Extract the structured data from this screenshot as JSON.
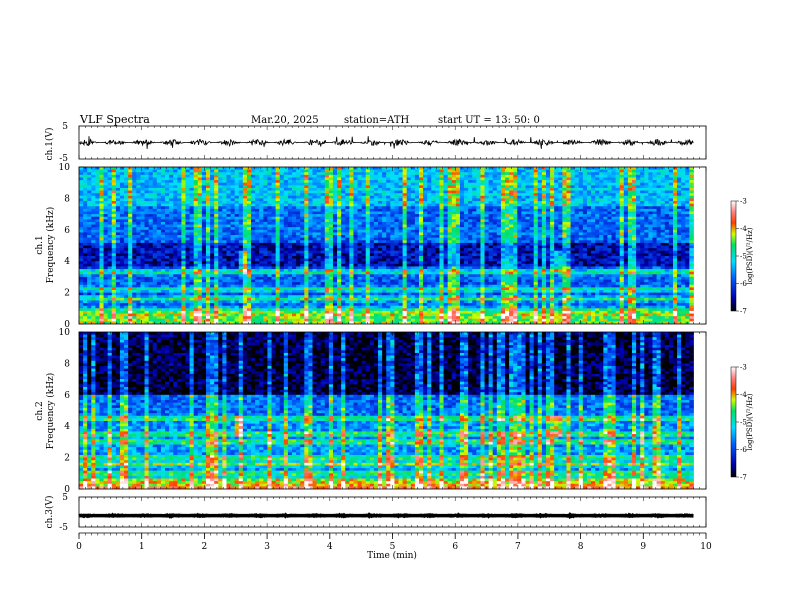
{
  "header": {
    "title": "VLF  Spectra",
    "date": "Mar.20, 2025",
    "station": "station=ATH",
    "start": "start  UT  =   13: 50: 0"
  },
  "chart_data": [
    {
      "type": "line",
      "id": "ch1-waveform",
      "ylabel": "ch.1(V)",
      "ylim": [
        -5,
        5
      ],
      "yticks": [
        "5",
        "-5"
      ],
      "x_range_min": [
        0,
        9.8
      ],
      "y_level": 0,
      "y_noise_amplitude": 1,
      "color": "#000000"
    },
    {
      "type": "heatmap",
      "id": "ch1-spectrogram",
      "ylabel": [
        "ch.1",
        "Frequency  (kHz)"
      ],
      "ylim": [
        0,
        10
      ],
      "yticks": [
        "0",
        "2",
        "4",
        "6",
        "8",
        "10"
      ],
      "x_range_min": [
        0,
        9.8
      ],
      "colorbar": {
        "label": "log(PSD)(V²/Hz)",
        "range": [
          -7,
          -3
        ],
        "ticks": [
          "-3",
          "-4",
          "-5",
          "-6",
          "-7"
        ]
      },
      "features": {
        "bright_bands_kHz": [
          0.0,
          0.3,
          0.6,
          0.9,
          1.6,
          2.2,
          3.3
        ],
        "dark_band_kHz": [
          3.6,
          5.2
        ],
        "bursts_min": [
          2.6,
          7.65
        ]
      }
    },
    {
      "type": "heatmap",
      "id": "ch2-spectrogram",
      "ylabel": [
        "ch.2",
        "Frequency  (kHz)"
      ],
      "ylim": [
        0,
        10
      ],
      "yticks": [
        "0",
        "2",
        "4",
        "6",
        "8",
        "10"
      ],
      "x_range_min": [
        0,
        9.8
      ],
      "colorbar": {
        "label": "log(PSD)(V²/Hz)",
        "range": [
          -7,
          -3
        ],
        "ticks": [
          "-3",
          "-4",
          "-5",
          "-6",
          "-7"
        ]
      },
      "features": {
        "bright_bands_kHz": [
          0.0,
          0.2,
          0.5,
          1.0,
          1.6,
          2.0,
          3.0,
          3.5,
          4.5
        ],
        "dark_band_kHz": [
          6.0,
          10.0
        ],
        "bursts_min": [
          2.55,
          7.65
        ]
      }
    },
    {
      "type": "line",
      "id": "ch3-waveform",
      "ylabel": "ch.3(V)",
      "ylim": [
        -5,
        5
      ],
      "yticks": [
        "5",
        "-5"
      ],
      "x_range_min": [
        0,
        9.8
      ],
      "y_level": -1.2,
      "y_noise_amplitude": 0.15,
      "color": "#000000"
    }
  ],
  "xaxis": {
    "label": "Time  (min)",
    "range": [
      0,
      10
    ],
    "ticks": [
      "0",
      "1",
      "2",
      "3",
      "4",
      "5",
      "6",
      "7",
      "8",
      "9",
      "10"
    ]
  }
}
